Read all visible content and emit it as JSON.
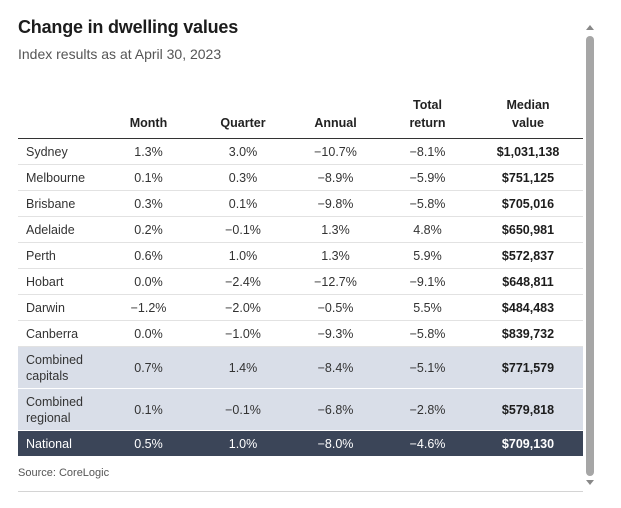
{
  "title": "Change in dwelling values",
  "subtitle": "Index results as at April 30, 2023",
  "columns": {
    "month": "Month",
    "quarter": "Quarter",
    "annual": "Annual",
    "total_line1": "Total",
    "total_line2": "return",
    "median_line1": "Median",
    "median_line2": "value"
  },
  "rows": [
    {
      "city": "Sydney",
      "month": "1.3%",
      "quarter": "3.0%",
      "annual": "−10.7%",
      "total": "−8.1%",
      "median": "$1,031,138"
    },
    {
      "city": "Melbourne",
      "month": "0.1%",
      "quarter": "0.3%",
      "annual": "−8.9%",
      "total": "−5.9%",
      "median": "$751,125"
    },
    {
      "city": "Brisbane",
      "month": "0.3%",
      "quarter": "0.1%",
      "annual": "−9.8%",
      "total": "−5.8%",
      "median": "$705,016"
    },
    {
      "city": "Adelaide",
      "month": "0.2%",
      "quarter": "−0.1%",
      "annual": "1.3%",
      "total": "4.8%",
      "median": "$650,981"
    },
    {
      "city": "Perth",
      "month": "0.6%",
      "quarter": "1.0%",
      "annual": "1.3%",
      "total": "5.9%",
      "median": "$572,837"
    },
    {
      "city": "Hobart",
      "month": "0.0%",
      "quarter": "−2.4%",
      "annual": "−12.7%",
      "total": "−9.1%",
      "median": "$648,811"
    },
    {
      "city": "Darwin",
      "month": "−1.2%",
      "quarter": "−2.0%",
      "annual": "−0.5%",
      "total": "5.5%",
      "median": "$484,483"
    },
    {
      "city": "Canberra",
      "month": "0.0%",
      "quarter": "−1.0%",
      "annual": "−9.3%",
      "total": "−5.8%",
      "median": "$839,732"
    },
    {
      "city_line1": "Combined",
      "city_line2": "capitals",
      "month": "0.7%",
      "quarter": "1.4%",
      "annual": "−8.4%",
      "total": "−5.1%",
      "median": "$771,579"
    },
    {
      "city_line1": "Combined",
      "city_line2": "regional",
      "month": "0.1%",
      "quarter": "−0.1%",
      "annual": "−6.8%",
      "total": "−2.8%",
      "median": "$579,818"
    },
    {
      "city": "National",
      "month": "0.5%",
      "quarter": "1.0%",
      "annual": "−8.0%",
      "total": "−4.6%",
      "median": "$709,130"
    }
  ],
  "source": "Source: CoreLogic",
  "colors": {
    "combined_row_bg": "#d9dee8",
    "national_row_bg": "#3b4558",
    "national_row_text": "#ffffff"
  }
}
